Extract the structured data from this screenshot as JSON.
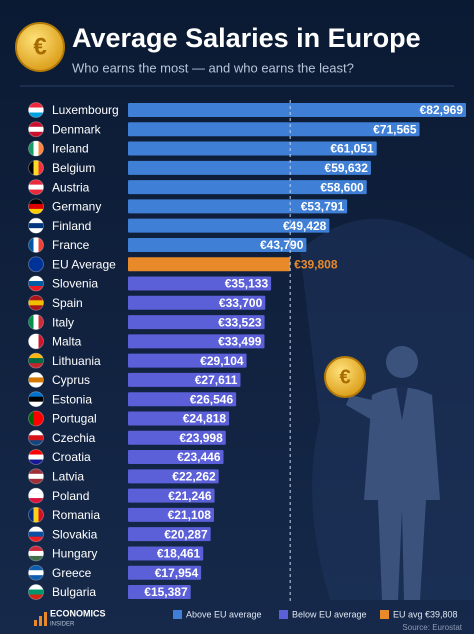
{
  "coin_symbol": "€",
  "brand": {
    "line1": "ECONOMICS",
    "line2": "INSIDER"
  },
  "source": "Source: Eurostat",
  "chart_data": {
    "type": "bar",
    "orientation": "horizontal",
    "title": "Average Salaries in Europe",
    "subtitle": "Who earns the most — and who earns the least?",
    "categories": [
      "Luxembourg",
      "Denmark",
      "Ireland",
      "Belgium",
      "Austria",
      "Germany",
      "Finland",
      "France",
      "EU Average",
      "Slovenia",
      "Spain",
      "Italy",
      "Malta",
      "Lithuania",
      "Cyprus",
      "Estonia",
      "Portugal",
      "Czechia",
      "Croatia",
      "Latvia",
      "Poland",
      "Romania",
      "Slovakia",
      "Hungary",
      "Greece",
      "Bulgaria"
    ],
    "values": [
      82969,
      71565,
      61051,
      59632,
      58600,
      53791,
      49428,
      43790,
      39808,
      35133,
      33700,
      33523,
      33499,
      29104,
      27611,
      26546,
      24818,
      23998,
      23446,
      22262,
      21246,
      21108,
      20287,
      18461,
      17954,
      15387
    ],
    "value_labels": [
      "€82,969",
      "€71,565",
      "€61,051",
      "€59,632",
      "€58,600",
      "€53,791",
      "€49,428",
      "€43,790",
      "€39,808",
      "€35,133",
      "€33,700",
      "€33,523",
      "€33,499",
      "€29,104",
      "€27,611",
      "€26,546",
      "€24,818",
      "€23,998",
      "€23,446",
      "€22,262",
      "€21,246",
      "€21,108",
      "€20,287",
      "€18,461",
      "€17,954",
      "€15,387"
    ],
    "colors": [
      "#3f7fd6",
      "#3f7fd6",
      "#3f7fd6",
      "#3f7fd6",
      "#3f7fd6",
      "#3f7fd6",
      "#3f7fd6",
      "#3f7fd6",
      "#e8892a",
      "#5b5fd8",
      "#5b5fd8",
      "#5b5fd8",
      "#5b5fd8",
      "#5b5fd8",
      "#5b5fd8",
      "#5b5fd8",
      "#5b5fd8",
      "#5b5fd8",
      "#5b5fd8",
      "#5b5fd8",
      "#5b5fd8",
      "#5b5fd8",
      "#5b5fd8",
      "#5b5fd8",
      "#5b5fd8",
      "#5b5fd8"
    ],
    "reference_index": 8,
    "legend": [
      {
        "label": "Above EU average",
        "color": "#3f7fd6"
      },
      {
        "label": "Below EU average",
        "color": "#5b5fd8"
      },
      {
        "label": "EU avg €39,808",
        "color": "#e8892a"
      }
    ]
  }
}
